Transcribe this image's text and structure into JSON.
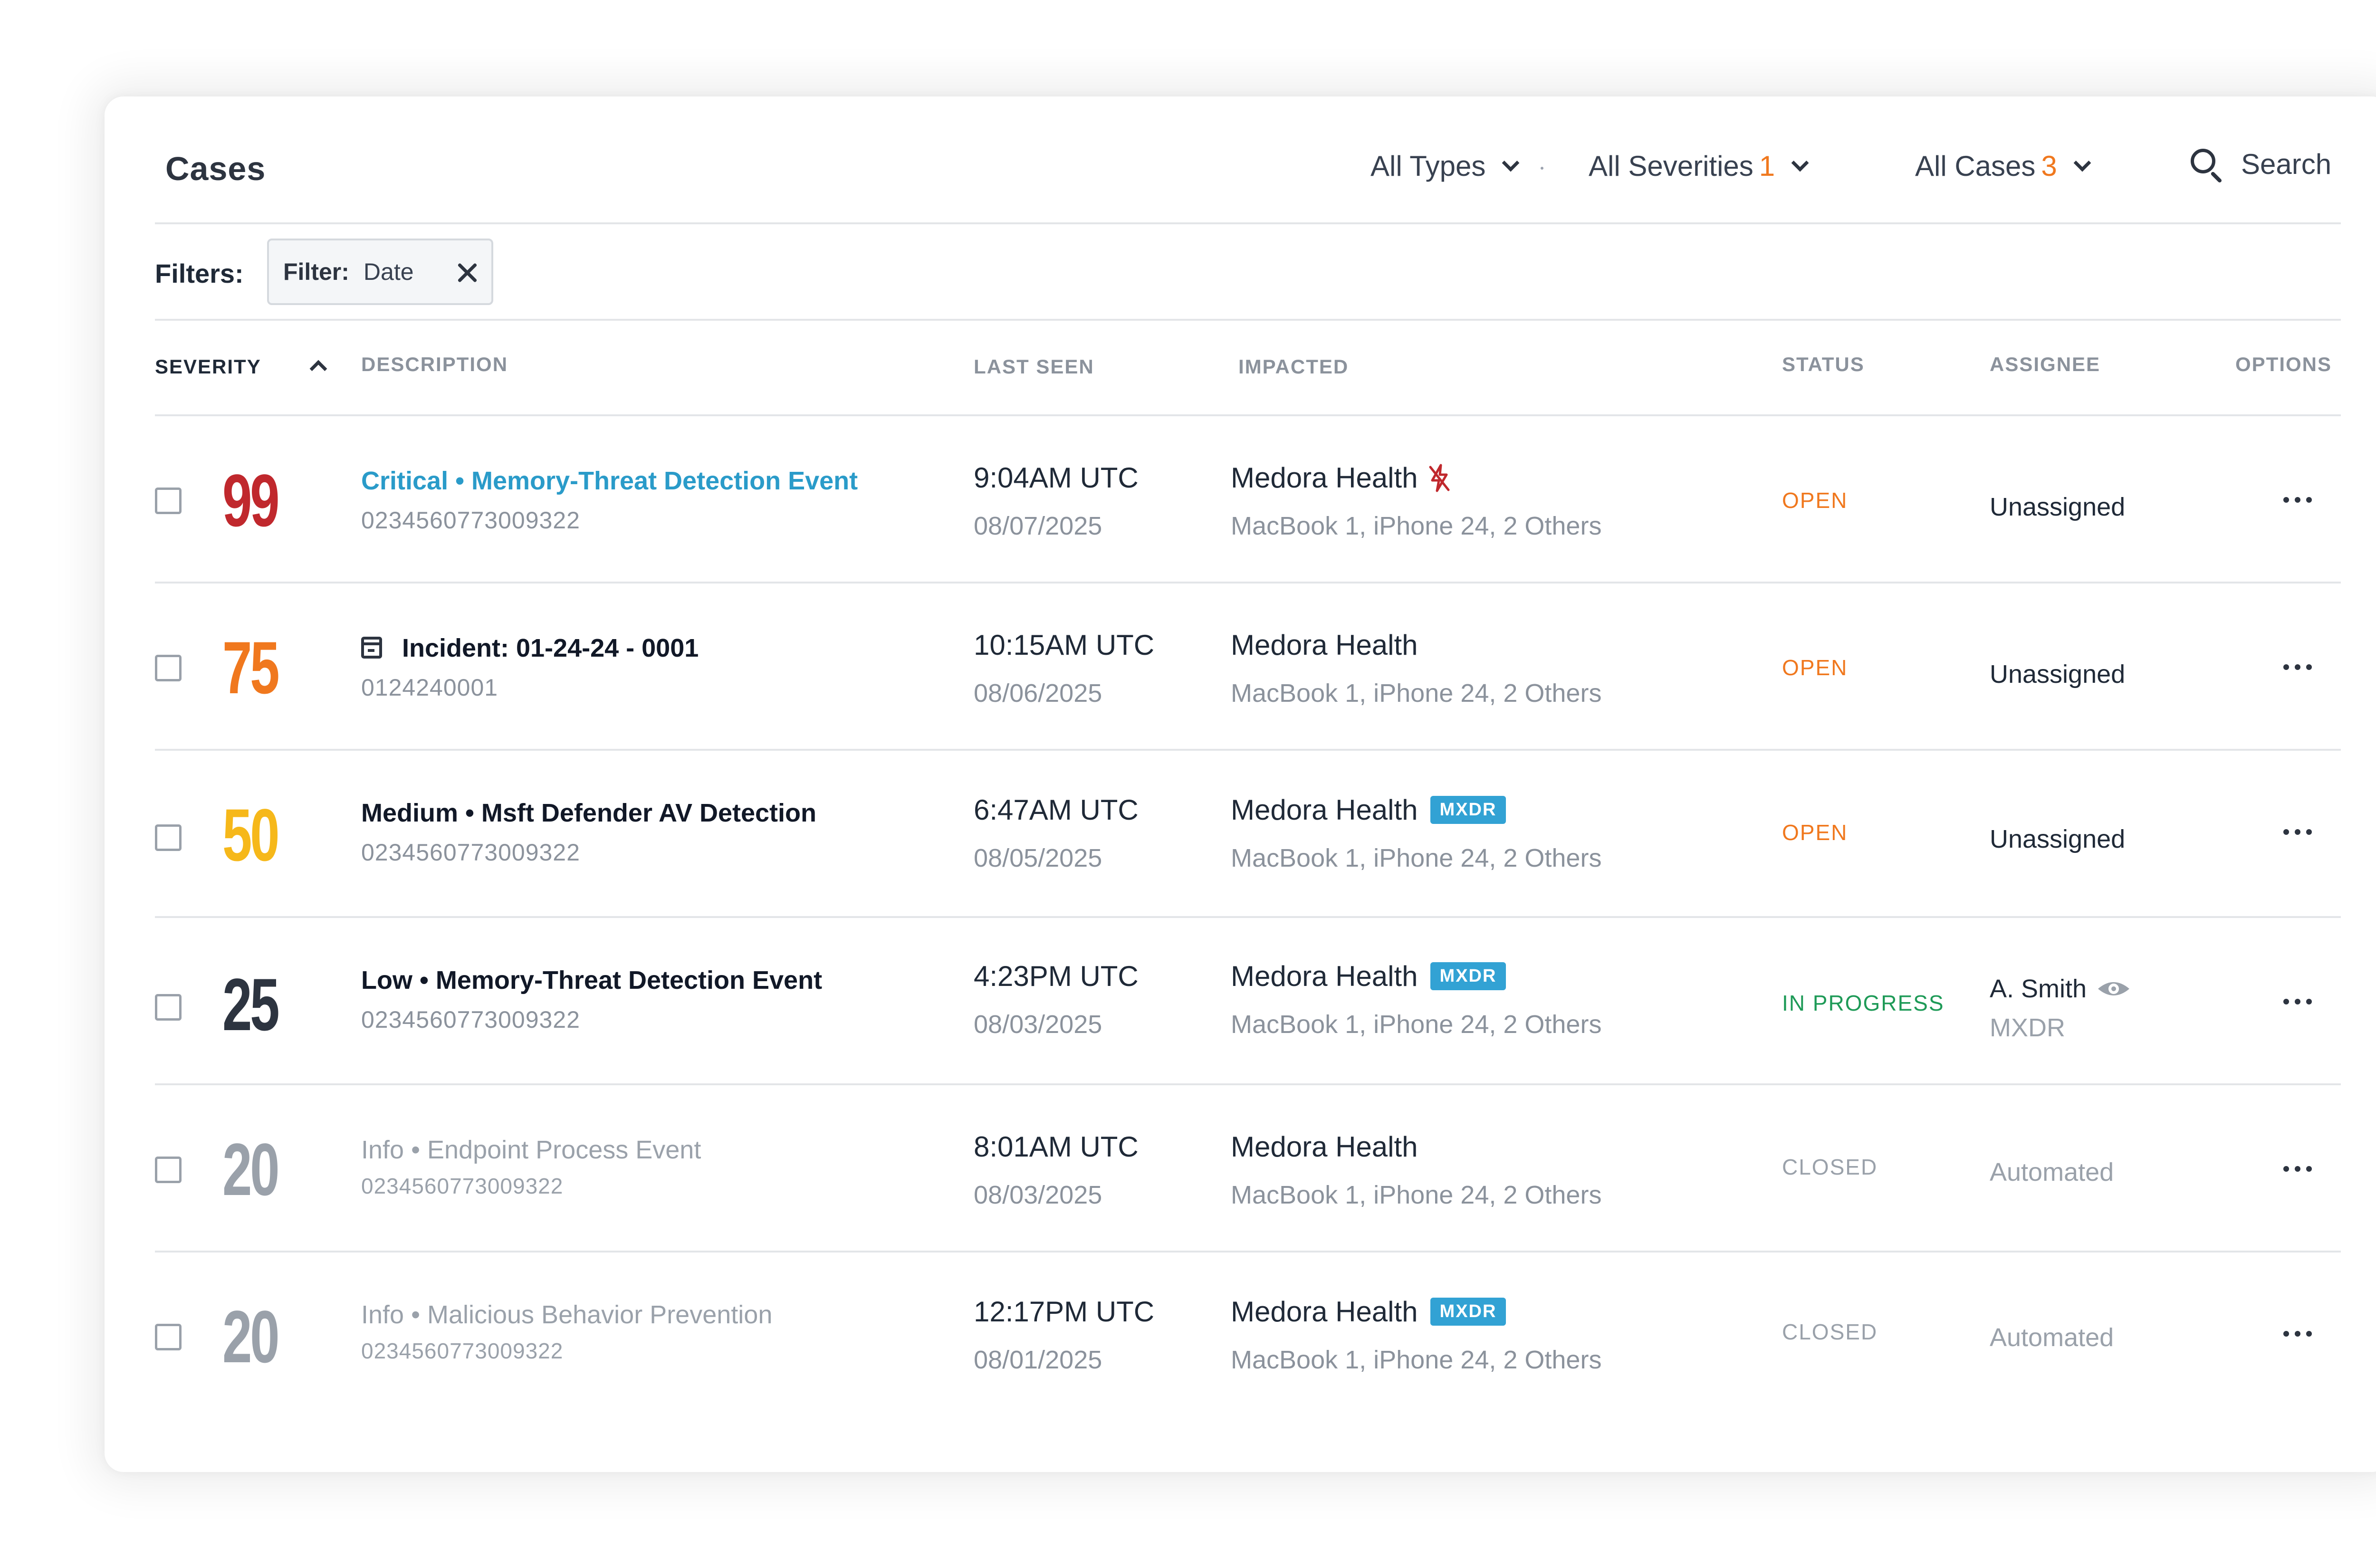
{
  "header": {
    "title": "Cases",
    "types_label": "All Types",
    "severities_label": "All Severities",
    "severities_count": "1",
    "cases_label": "All Cases",
    "cases_count": "3",
    "search_label": "Search"
  },
  "filters": {
    "label": "Filters:",
    "chip_key": "Filter:",
    "chip_value": "Date"
  },
  "columns": {
    "severity": "SEVERITY",
    "description": "DESCRIPTION",
    "last_seen": "LAST SEEN",
    "impacted": "IMPACTED",
    "status": "STATUS",
    "assignee": "ASSIGNEE",
    "options": "OPTIONS"
  },
  "colors": {
    "critical": "#c0282d",
    "high": "#f0781e",
    "medium": "#f6b81a",
    "low": "#2d3440",
    "info": "#9aa1aa",
    "link": "#2a9bc9",
    "mxdr_badge": "#32a2d4",
    "in_progress": "#1e9a57"
  },
  "rows": [
    {
      "score": "99",
      "title": "Critical • Memory-Threat Detection Event",
      "id": "0234560773009322",
      "time": "9:04AM UTC",
      "date": "08/07/2025",
      "org": "Medora Health",
      "org_icon": "bolt-off-icon",
      "devices": "MacBook 1, iPhone 24, 2 Others",
      "status": "OPEN",
      "assignee": "Unassigned"
    },
    {
      "score": "75",
      "title": "Incident: 01-24-24 - 0001",
      "title_icon": "calendar-icon",
      "id": "0124240001",
      "time": "10:15AM UTC",
      "date": "08/06/2025",
      "org": "Medora Health",
      "devices": "MacBook 1, iPhone 24, 2 Others",
      "status": "OPEN",
      "assignee": "Unassigned"
    },
    {
      "score": "50",
      "title": "Medium • Msft Defender AV Detection",
      "id": "0234560773009322",
      "time": "6:47AM UTC",
      "date": "08/05/2025",
      "org": "Medora Health",
      "badge": "MXDR",
      "devices": "MacBook 1, iPhone 24, 2 Others",
      "status": "OPEN",
      "assignee": "Unassigned"
    },
    {
      "score": "25",
      "title": "Low • Memory-Threat Detection Event",
      "id": "0234560773009322",
      "time": "4:23PM UTC",
      "date": "08/03/2025",
      "org": "Medora Health",
      "badge": "MXDR",
      "devices": "MacBook 1, iPhone 24, 2 Others",
      "status": "IN PROGRESS",
      "assignee": "A. Smith",
      "assignee_icon": "eye-icon",
      "assignee_sub": "MXDR"
    },
    {
      "score": "20",
      "title": "Info • Endpoint Process Event",
      "id": "0234560773009322",
      "time": "8:01AM UTC",
      "date": "08/03/2025",
      "org": "Medora Health",
      "devices": "MacBook 1, iPhone 24, 2 Others",
      "status": "CLOSED",
      "assignee": "Automated"
    },
    {
      "score": "20",
      "title": "Info • Malicious Behavior Prevention",
      "id": "0234560773009322",
      "time": "12:17PM UTC",
      "date": "08/01/2025",
      "org": "Medora Health",
      "badge": "MXDR",
      "devices": "MacBook 1, iPhone 24, 2 Others",
      "status": "CLOSED",
      "assignee": "Automated"
    }
  ]
}
